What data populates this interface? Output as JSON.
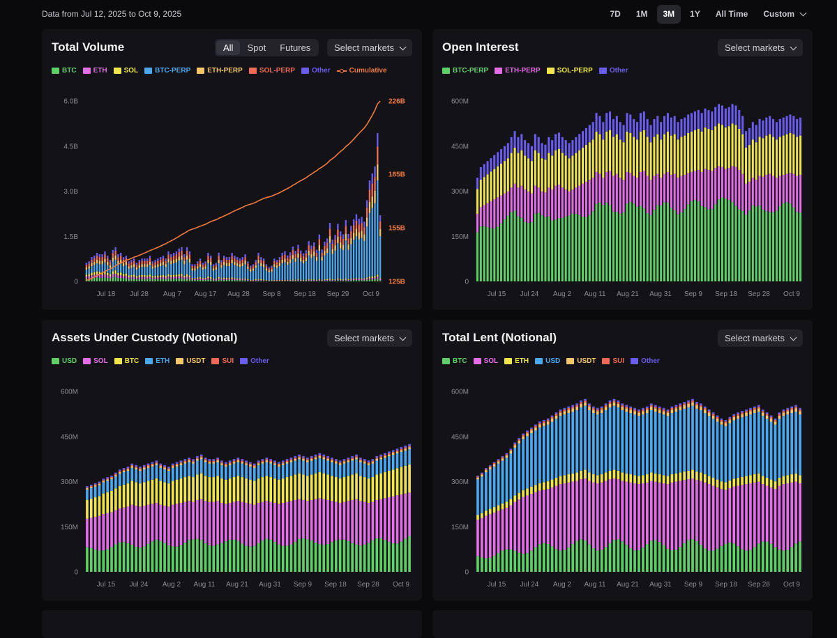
{
  "header": {
    "date_range": "Data from Jul 12, 2025 to Oct 9, 2025",
    "ranges": [
      "7D",
      "1M",
      "3M",
      "1Y",
      "All Time",
      "Custom"
    ],
    "active_range": "3M"
  },
  "cards": [
    {
      "title": "Total Volume",
      "select": "Select markets",
      "segments": [
        "All",
        "Spot",
        "Futures"
      ],
      "active_segment": "All"
    },
    {
      "title": "Open Interest",
      "select": "Select markets"
    },
    {
      "title": "Assets Under Custody (Notional)",
      "select": "Select markets"
    },
    {
      "title": "Total Lent (Notional)",
      "select": "Select markets"
    },
    {
      "title": "",
      "select": ""
    },
    {
      "title": "",
      "select": ""
    }
  ],
  "cumulative_label": "Cumulative",
  "chart_data": [
    {
      "type": "bar",
      "stacked": true,
      "title": "Total Volume",
      "series": [
        {
          "name": "BTC",
          "color": "#5fd068"
        },
        {
          "name": "ETH",
          "color": "#e46de8"
        },
        {
          "name": "SOL",
          "color": "#f0e64a"
        },
        {
          "name": "BTC-PERP",
          "color": "#4aa8f0"
        },
        {
          "name": "ETH-PERP",
          "color": "#f5c56a"
        },
        {
          "name": "SOL-PERP",
          "color": "#f06a55"
        },
        {
          "name": "Other",
          "color": "#6b5cf0"
        }
      ],
      "line_series": {
        "name": "Cumulative",
        "color": "#f07a3f",
        "ylim": [
          125,
          226
        ],
        "unit": "B",
        "endpoints": [
          125,
          226
        ]
      },
      "ylim": [
        0,
        6.0
      ],
      "yticks": [
        "0",
        "1.5B",
        "3.0B",
        "4.5B",
        "6.0B"
      ],
      "yticks_values": [
        0,
        1.5,
        3.0,
        4.5,
        6.0
      ],
      "y2ticks": [
        "125B",
        "155B",
        "185B",
        "226B"
      ],
      "y2ticks_values": [
        125,
        155,
        185,
        226
      ],
      "xticks": [
        "Jul 18",
        "Jul 28",
        "Aug 7",
        "Aug 17",
        "Aug 28",
        "Sep 8",
        "Sep 18",
        "Sep 29",
        "Oct 9"
      ],
      "totals": [
        0.65,
        0.7,
        0.85,
        0.9,
        1.0,
        0.95,
        0.95,
        1.05,
        0.9,
        0.75,
        1.1,
        1.2,
        0.95,
        1.0,
        0.85,
        0.9,
        0.7,
        0.75,
        0.8,
        0.65,
        0.75,
        0.8,
        0.8,
        0.8,
        0.9,
        0.7,
        0.75,
        0.8,
        0.85,
        0.9,
        0.8,
        1.05,
        0.95,
        1.0,
        1.05,
        1.15,
        1.2,
        0.95,
        1.2,
        1.05,
        0.6,
        0.6,
        0.7,
        0.8,
        0.65,
        0.7,
        1.0,
        0.9,
        0.6,
        0.65,
        1.0,
        0.75,
        0.9,
        0.85,
        0.85,
        1.0,
        0.9,
        0.85,
        0.8,
        0.85,
        0.95,
        0.7,
        0.55,
        0.6,
        0.75,
        1.0,
        0.85,
        0.8,
        0.6,
        0.5,
        0.55,
        0.8,
        0.75,
        0.85,
        1.0,
        1.05,
        0.9,
        1.0,
        1.2,
        1.05,
        1.25,
        1.05,
        0.95,
        1.05,
        1.35,
        1.2,
        1.3,
        1.05,
        1.55,
        1.05,
        1.3,
        1.4,
        1.9,
        1.35,
        1.5,
        1.85,
        1.6,
        1.5,
        1.95,
        1.5,
        1.75,
        1.95,
        2.1,
        1.95,
        2.0,
        1.85,
        2.5,
        3.1,
        3.3,
        3.5,
        4.5,
        2.0
      ]
    },
    {
      "type": "bar",
      "stacked": true,
      "title": "Open Interest",
      "series": [
        {
          "name": "BTC-PERP",
          "color": "#5fd068"
        },
        {
          "name": "ETH-PERP",
          "color": "#e46de8"
        },
        {
          "name": "SOL-PERP",
          "color": "#f0e64a"
        },
        {
          "name": "Other",
          "color": "#6b5cf0"
        }
      ],
      "ylim": [
        0,
        600
      ],
      "yticks": [
        "0",
        "150M",
        "300M",
        "450M",
        "600M"
      ],
      "yticks_values": [
        0,
        150,
        300,
        450,
        600
      ],
      "xticks": [
        "Jul 15",
        "Jul 24",
        "Aug 2",
        "Aug 11",
        "Aug 21",
        "Aug 31",
        "Sep 9",
        "Sep 18",
        "Sep 28",
        "Oct 9"
      ],
      "totals": [
        345,
        380,
        390,
        400,
        410,
        420,
        430,
        440,
        450,
        460,
        480,
        500,
        480,
        490,
        470,
        460,
        450,
        490,
        480,
        460,
        455,
        480,
        470,
        490,
        495,
        480,
        470,
        460,
        470,
        480,
        490,
        500,
        510,
        520,
        530,
        560,
        550,
        530,
        560,
        565,
        540,
        550,
        530,
        520,
        560,
        555,
        540,
        530,
        560,
        565,
        540,
        520,
        540,
        550,
        530,
        550,
        560,
        545,
        550,
        530,
        540,
        545,
        555,
        560,
        565,
        570,
        560,
        575,
        570,
        565,
        580,
        590,
        585,
        575,
        580,
        590,
        585,
        570,
        550,
        500,
        510,
        530,
        520,
        540,
        535,
        545,
        550,
        540,
        530,
        540,
        545,
        550,
        555,
        550,
        540,
        545
      ],
      "stack_fractions": [
        0.45,
        0.2,
        0.24,
        0.11
      ]
    },
    {
      "type": "bar",
      "stacked": true,
      "title": "Assets Under Custody (Notional)",
      "series": [
        {
          "name": "USD",
          "color": "#5fd068"
        },
        {
          "name": "SOL",
          "color": "#e46de8"
        },
        {
          "name": "BTC",
          "color": "#f0e64a"
        },
        {
          "name": "ETH",
          "color": "#4aa8f0"
        },
        {
          "name": "USDT",
          "color": "#f5c56a"
        },
        {
          "name": "SUI",
          "color": "#f06a55"
        },
        {
          "name": "Other",
          "color": "#6b5cf0"
        }
      ],
      "ylim": [
        0,
        600
      ],
      "yticks": [
        "0",
        "150M",
        "300M",
        "450M",
        "600M"
      ],
      "yticks_values": [
        0,
        150,
        300,
        450,
        600
      ],
      "xticks": [
        "Jul 15",
        "Jul 24",
        "Aug 2",
        "Aug 11",
        "Aug 21",
        "Aug 31",
        "Sep 9",
        "Sep 18",
        "Sep 28",
        "Oct 9"
      ],
      "totals": [
        285,
        290,
        295,
        300,
        310,
        315,
        320,
        330,
        340,
        345,
        350,
        360,
        355,
        350,
        355,
        360,
        365,
        370,
        360,
        355,
        350,
        360,
        365,
        370,
        375,
        380,
        375,
        385,
        390,
        380,
        375,
        375,
        380,
        370,
        365,
        370,
        375,
        380,
        375,
        370,
        365,
        360,
        370,
        375,
        380,
        375,
        370,
        365,
        370,
        375,
        380,
        385,
        390,
        385,
        380,
        385,
        390,
        395,
        390,
        385,
        380,
        375,
        370,
        375,
        380,
        385,
        390,
        380,
        375,
        370,
        375,
        385,
        390,
        395,
        400,
        405,
        410,
        415,
        420,
        425
      ],
      "stack_fractions": [
        0.26,
        0.36,
        0.22,
        0.12,
        0.015,
        0.01,
        0.015
      ]
    },
    {
      "type": "bar",
      "stacked": true,
      "title": "Total Lent (Notional)",
      "series": [
        {
          "name": "BTC",
          "color": "#5fd068"
        },
        {
          "name": "SOL",
          "color": "#e46de8"
        },
        {
          "name": "ETH",
          "color": "#f0e64a"
        },
        {
          "name": "USD",
          "color": "#4aa8f0"
        },
        {
          "name": "USDT",
          "color": "#f5c56a"
        },
        {
          "name": "SUI",
          "color": "#f06a55"
        },
        {
          "name": "Other",
          "color": "#6b5cf0"
        }
      ],
      "ylim": [
        0,
        600
      ],
      "yticks": [
        "0",
        "150M",
        "300M",
        "450M",
        "600M"
      ],
      "yticks_values": [
        0,
        150,
        300,
        450,
        600
      ],
      "xticks": [
        "Jul 15",
        "Jul 24",
        "Aug 2",
        "Aug 11",
        "Aug 21",
        "Aug 31",
        "Sep 9",
        "Sep 18",
        "Sep 28",
        "Oct 9"
      ],
      "totals": [
        320,
        330,
        345,
        355,
        365,
        375,
        385,
        395,
        410,
        430,
        445,
        460,
        470,
        480,
        490,
        500,
        505,
        510,
        520,
        530,
        540,
        545,
        550,
        555,
        560,
        570,
        575,
        560,
        550,
        545,
        550,
        560,
        570,
        575,
        570,
        560,
        555,
        550,
        545,
        540,
        545,
        550,
        560,
        555,
        550,
        545,
        540,
        550,
        555,
        560,
        565,
        570,
        575,
        565,
        560,
        550,
        540,
        530,
        520,
        510,
        505,
        515,
        525,
        530,
        535,
        540,
        545,
        550,
        555,
        540,
        530,
        520,
        510,
        530,
        540,
        545,
        550,
        555,
        545
      ],
      "stack_fractions": [
        0.16,
        0.38,
        0.05,
        0.37,
        0.02,
        0.01,
        0.01
      ]
    }
  ]
}
